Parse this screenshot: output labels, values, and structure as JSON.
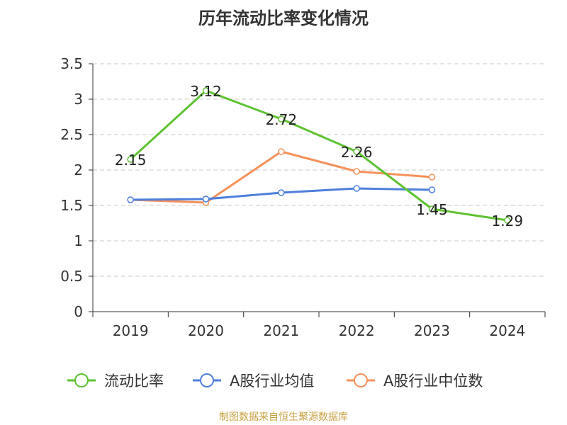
{
  "chart_data": {
    "type": "line",
    "title": "历年流动比率变化情况",
    "categories": [
      "2019",
      "2020",
      "2021",
      "2022",
      "2023",
      "2024"
    ],
    "ylim": [
      0,
      3.5
    ],
    "yticks": [
      0,
      0.5,
      1,
      1.5,
      2,
      2.5,
      3,
      3.5
    ],
    "ytick_labels": [
      "0",
      "0.5",
      "1",
      "1.5",
      "2",
      "2.5",
      "3",
      "3.5"
    ],
    "grid": true,
    "legend_position": "bottom",
    "series": [
      {
        "name": "流动比率",
        "color": "#5ec232",
        "values": [
          2.15,
          3.12,
          2.72,
          2.26,
          1.45,
          1.29
        ],
        "labels": [
          "2.15",
          "3.12",
          "2.72",
          "2.26",
          "1.45",
          "1.29"
        ]
      },
      {
        "name": "A股行业均值",
        "color": "#4e7fdc",
        "values": [
          1.58,
          1.59,
          1.68,
          1.74,
          1.72,
          null
        ]
      },
      {
        "name": "A股行业中位数",
        "color": "#f5915a",
        "values": [
          1.58,
          1.54,
          2.26,
          1.98,
          1.9,
          null
        ]
      }
    ]
  },
  "source_note": "制图数据来自恒生聚源数据库"
}
